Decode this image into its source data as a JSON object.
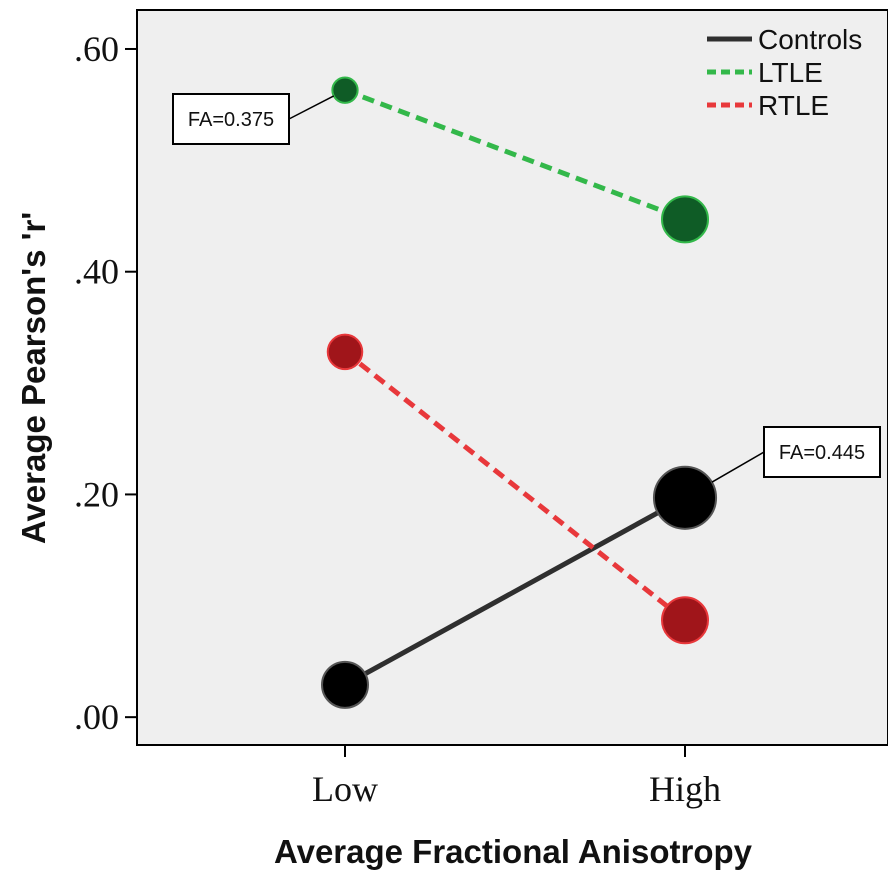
{
  "chart_data": {
    "type": "line",
    "xlabel": "Average Fractional Anisotropy",
    "ylabel": "Average Pearson's 'r'",
    "categories": [
      "Low",
      "High"
    ],
    "ylim": [
      -0.025,
      0.635
    ],
    "yticks": [
      0.0,
      0.2,
      0.4,
      0.6
    ],
    "ytick_labels": [
      ".00",
      ".20",
      ".40",
      ".60"
    ],
    "grid": false,
    "legend_position": "top-right",
    "background": "#efefef",
    "series": [
      {
        "name": "Controls",
        "values": [
          0.029,
          0.197
        ],
        "color": "#2f2f2f",
        "marker_color": "#000000",
        "dashed": false,
        "marker_scale": [
          1.0,
          1.35
        ]
      },
      {
        "name": "LTLE",
        "values": [
          0.563,
          0.447
        ],
        "color": "#33b84a",
        "marker_color": "#0f5c26",
        "dashed": true,
        "marker_scale": [
          0.55,
          1.0
        ]
      },
      {
        "name": "RTLE",
        "values": [
          0.328,
          0.087
        ],
        "color": "#e8383b",
        "marker_color": "#a0151a",
        "dashed": true,
        "marker_scale": [
          0.75,
          1.0
        ]
      }
    ],
    "annotations": [
      {
        "text": "FA=0.375",
        "series": 1,
        "point": 0
      },
      {
        "text": "FA=0.445",
        "series": 0,
        "point": 1
      }
    ]
  }
}
